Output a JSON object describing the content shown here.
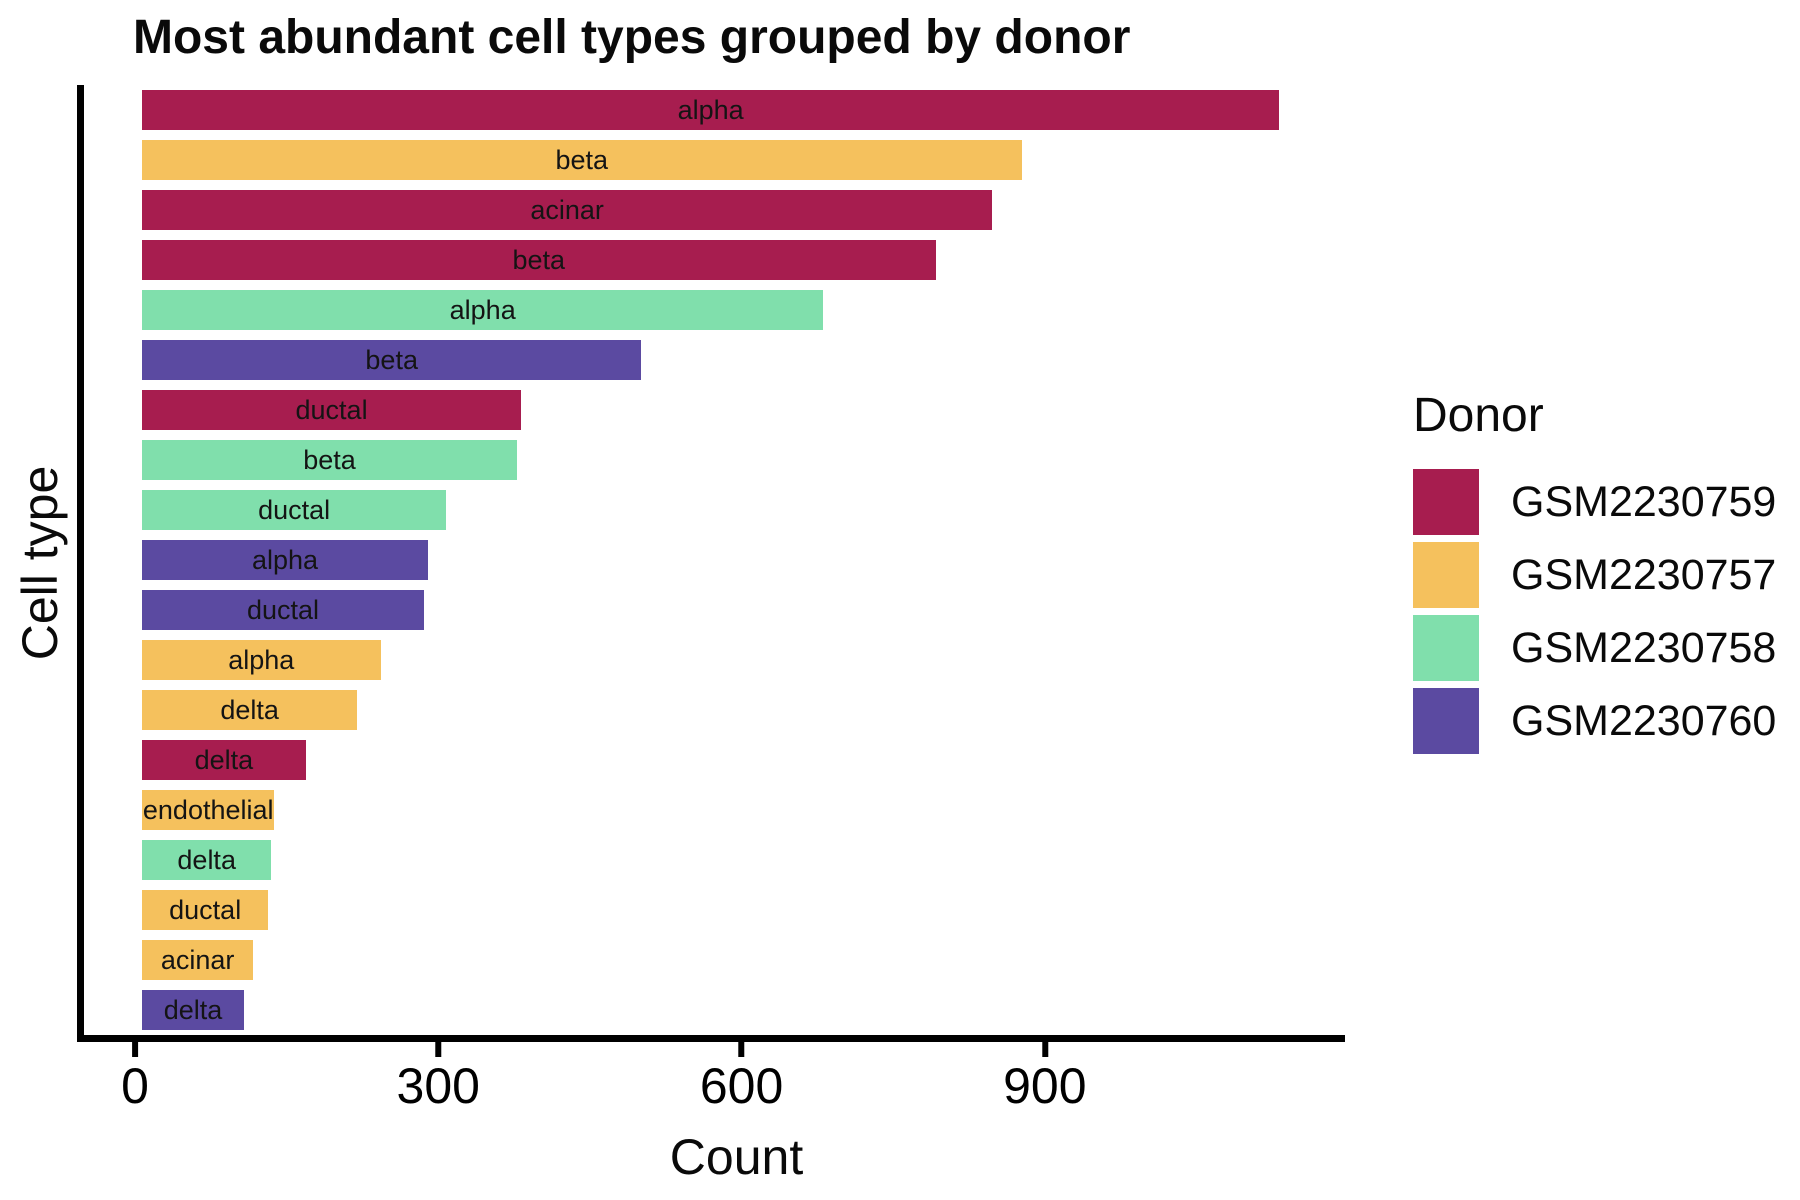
{
  "title": "Most abundant cell types grouped by donor",
  "colors": {
    "GSM2230759": "#A71D4F",
    "GSM2230757": "#F5C15D",
    "GSM2230758": "#80DFAC",
    "GSM2230760": "#5B4AA1"
  },
  "chart_data": {
    "type": "bar",
    "orientation": "horizontal",
    "title": "Most abundant cell types grouped by donor",
    "xlabel": "Count",
    "ylabel": "Cell type",
    "xlim": [
      0,
      1190
    ],
    "xticks": [
      0,
      300,
      600,
      900
    ],
    "grid": false,
    "legend": {
      "title": "Donor",
      "position": "right",
      "entries": [
        {
          "label": "GSM2230759",
          "color": "#A71D4F"
        },
        {
          "label": "GSM2230757",
          "color": "#F5C15D"
        },
        {
          "label": "GSM2230758",
          "color": "#80DFAC"
        },
        {
          "label": "GSM2230760",
          "color": "#5B4AA1"
        }
      ]
    },
    "bars": [
      {
        "label": "alpha",
        "donor": "GSM2230759",
        "value": 1125
      },
      {
        "label": "beta",
        "donor": "GSM2230757",
        "value": 870
      },
      {
        "label": "acinar",
        "donor": "GSM2230759",
        "value": 841
      },
      {
        "label": "beta",
        "donor": "GSM2230759",
        "value": 785
      },
      {
        "label": "alpha",
        "donor": "GSM2230758",
        "value": 674
      },
      {
        "label": "beta",
        "donor": "GSM2230760",
        "value": 494
      },
      {
        "label": "ductal",
        "donor": "GSM2230759",
        "value": 375
      },
      {
        "label": "beta",
        "donor": "GSM2230758",
        "value": 371
      },
      {
        "label": "ductal",
        "donor": "GSM2230758",
        "value": 301
      },
      {
        "label": "alpha",
        "donor": "GSM2230760",
        "value": 283
      },
      {
        "label": "ductal",
        "donor": "GSM2230760",
        "value": 279
      },
      {
        "label": "alpha",
        "donor": "GSM2230757",
        "value": 236
      },
      {
        "label": "delta",
        "donor": "GSM2230757",
        "value": 213
      },
      {
        "label": "delta",
        "donor": "GSM2230759",
        "value": 162
      },
      {
        "label": "endothelial",
        "donor": "GSM2230757",
        "value": 131
      },
      {
        "label": "delta",
        "donor": "GSM2230758",
        "value": 128
      },
      {
        "label": "ductal",
        "donor": "GSM2230757",
        "value": 125
      },
      {
        "label": "acinar",
        "donor": "GSM2230757",
        "value": 110
      },
      {
        "label": "delta",
        "donor": "GSM2230760",
        "value": 101
      }
    ]
  }
}
